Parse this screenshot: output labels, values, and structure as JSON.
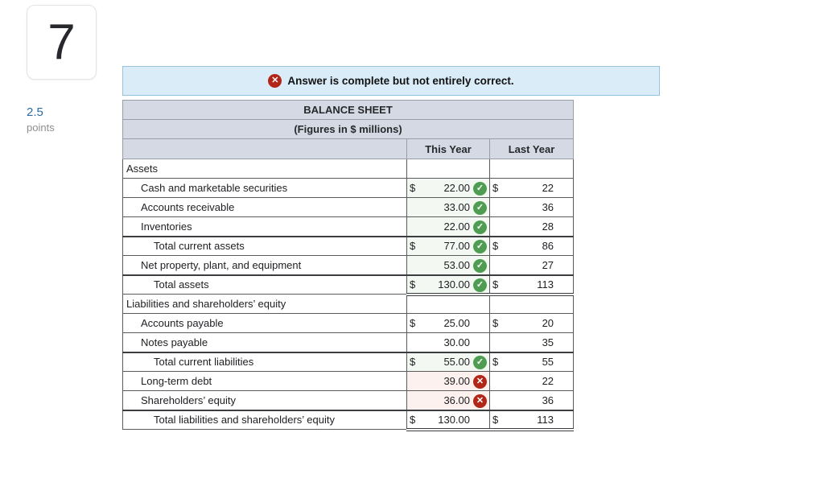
{
  "question": {
    "number": "7",
    "points_value": "2.5",
    "points_label": "points"
  },
  "banner": {
    "message": "Answer is complete but not entirely correct.",
    "icon": "circle-x"
  },
  "colors": {
    "correct_green": "#4f9d53",
    "incorrect_red": "#b22619",
    "banner_bg": "#d9ecf8",
    "banner_border": "#98c3dc",
    "header_bg": "#d5d9e3",
    "correct_cell_bg": "#f3f8f3",
    "incorrect_cell_bg": "#fcf1ee",
    "points_blue": "#2d6da3"
  },
  "table": {
    "title": "BALANCE SHEET",
    "subtitle": "(Figures in $ millions)",
    "columns": [
      "",
      "This Year",
      "Last Year"
    ],
    "rows": [
      {
        "label": "Assets",
        "indent": 0,
        "section": true
      },
      {
        "label": "Cash and marketable securities",
        "indent": 1,
        "ty_cur": "$",
        "ty_val": "22.00",
        "ty_icon": "check",
        "ly_cur": "$",
        "ly_val": "22"
      },
      {
        "label": "Accounts receivable",
        "indent": 1,
        "ty_val": "33.00",
        "ty_icon": "check",
        "ly_val": "36"
      },
      {
        "label": "Inventories",
        "indent": 1,
        "ty_val": "22.00",
        "ty_icon": "check",
        "ly_val": "28"
      },
      {
        "label": "Total current assets",
        "indent": 2,
        "thick_top": true,
        "ty_cur": "$",
        "ty_val": "77.00",
        "ty_icon": "check",
        "ly_cur": "$",
        "ly_val": "86"
      },
      {
        "label": "Net property, plant, and equipment",
        "indent": 1,
        "ty_val": "53.00",
        "ty_icon": "check",
        "ly_val": "27"
      },
      {
        "label": "Total assets",
        "indent": 2,
        "thick_top": true,
        "double_bottom": true,
        "ty_cur": "$",
        "ty_val": "130.00",
        "ty_icon": "check",
        "ly_cur": "$",
        "ly_val": "113"
      },
      {
        "label": "Liabilities and shareholders’ equity",
        "indent": 0,
        "section": true
      },
      {
        "label": "Accounts payable",
        "indent": 1,
        "ty_cur": "$",
        "ty_val": "25.00",
        "ly_cur": "$",
        "ly_val": "20"
      },
      {
        "label": "Notes payable",
        "indent": 1,
        "ty_val": "30.00",
        "ly_val": "35"
      },
      {
        "label": "Total current liabilities",
        "indent": 2,
        "thick_top": true,
        "ty_cur": "$",
        "ty_val": "55.00",
        "ty_icon": "check",
        "ly_cur": "$",
        "ly_val": "55"
      },
      {
        "label": "Long-term debt",
        "indent": 1,
        "ty_val": "39.00",
        "ty_icon": "cross",
        "ly_val": "22"
      },
      {
        "label": "Shareholders’ equity",
        "indent": 1,
        "ty_val": "36.00",
        "ty_icon": "cross",
        "ly_val": "36"
      },
      {
        "label": "Total liabilities and shareholders’ equity",
        "indent": 2,
        "thick_top": true,
        "double_bottom": true,
        "ty_cur": "$",
        "ty_val": "130.00",
        "ly_cur": "$",
        "ly_val": "113"
      }
    ]
  }
}
